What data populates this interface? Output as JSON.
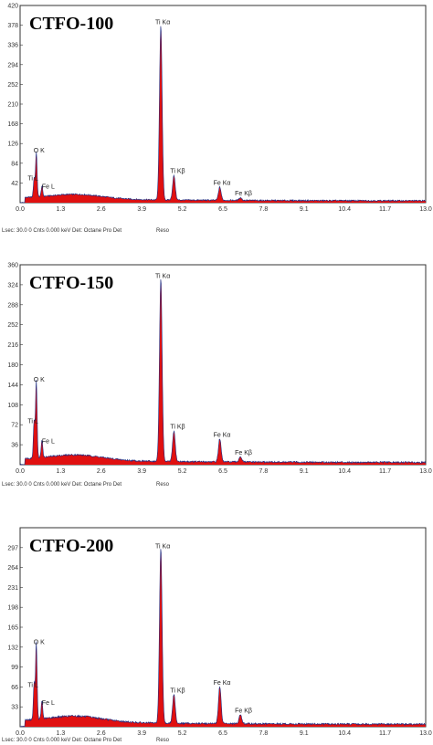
{
  "chart_data": [
    {
      "type": "line",
      "title": "CTFO-100",
      "xlim": [
        0,
        13.0
      ],
      "ylim": [
        0,
        420
      ],
      "x_ticks": [
        "0.0",
        "1.3",
        "2.6",
        "3.9",
        "5.2",
        "6.5",
        "7.8",
        "9.1",
        "10.4",
        "11.7",
        "13.0"
      ],
      "y_ticks": [
        "42",
        "84",
        "126",
        "168",
        "210",
        "252",
        "294",
        "336",
        "378",
        "420"
      ],
      "peaks": [
        {
          "label": "O K",
          "x": 0.52,
          "y": 95
        },
        {
          "label": "Ti L",
          "x": 0.45,
          "y": 40
        },
        {
          "label": "Fe L",
          "x": 0.7,
          "y": 22
        },
        {
          "label": "Ti Kα",
          "x": 4.51,
          "y": 372
        },
        {
          "label": "Ti Kβ",
          "x": 4.93,
          "y": 52
        },
        {
          "label": "Fe Kα",
          "x": 6.4,
          "y": 28
        },
        {
          "label": "Fe Kβ",
          "x": 7.06,
          "y": 6
        }
      ],
      "series": [
        {
          "values": []
        }
      ],
      "status": "Lsec: 30.0 0 Cnts 0.000 keV Det: Octane Pro Det",
      "status_reso": "Reso"
    },
    {
      "type": "line",
      "title": "CTFO-150",
      "xlim": [
        0,
        13.0
      ],
      "ylim": [
        0,
        360
      ],
      "x_ticks": [
        "0.0",
        "1.3",
        "2.6",
        "3.9",
        "5.2",
        "6.5",
        "7.8",
        "9.1",
        "10.4",
        "11.7",
        "13.0"
      ],
      "y_ticks": [
        "36",
        "72",
        "108",
        "144",
        "180",
        "216",
        "252",
        "288",
        "324",
        "360"
      ],
      "peaks": [
        {
          "label": "O K",
          "x": 0.52,
          "y": 140
        },
        {
          "label": "Ti L",
          "x": 0.45,
          "y": 68
        },
        {
          "label": "Fe L",
          "x": 0.7,
          "y": 32
        },
        {
          "label": "Ti Kα",
          "x": 4.51,
          "y": 330
        },
        {
          "label": "Ti Kβ",
          "x": 4.93,
          "y": 55
        },
        {
          "label": "Fe Kα",
          "x": 6.4,
          "y": 42
        },
        {
          "label": "Fe Kβ",
          "x": 7.06,
          "y": 10
        }
      ],
      "series": [
        {
          "values": []
        }
      ],
      "status": "Lsec: 30.0 0 Cnts 0.000 keV Det: Octane Pro Det",
      "status_reso": "Reso"
    },
    {
      "type": "line",
      "title": "CTFO-200",
      "xlim": [
        0,
        13.0
      ],
      "ylim": [
        0,
        330
      ],
      "x_ticks": [
        "0.0",
        "1.3",
        "2.6",
        "3.9",
        "5.2",
        "6.5",
        "7.8",
        "9.1",
        "10.4",
        "11.7",
        "13.0"
      ],
      "y_ticks": [
        "33",
        "66",
        "99",
        "132",
        "165",
        "198",
        "231",
        "264",
        "297"
      ],
      "peaks": [
        {
          "label": "O K",
          "x": 0.52,
          "y": 128
        },
        {
          "label": "Ti L",
          "x": 0.45,
          "y": 60
        },
        {
          "label": "Fe L",
          "x": 0.7,
          "y": 30
        },
        {
          "label": "Ti Kα",
          "x": 4.51,
          "y": 290
        },
        {
          "label": "Ti Kβ",
          "x": 4.93,
          "y": 48
        },
        {
          "label": "Fe Kα",
          "x": 6.4,
          "y": 62
        },
        {
          "label": "Fe Kβ",
          "x": 7.06,
          "y": 16
        }
      ],
      "series": [
        {
          "values": []
        }
      ],
      "status": "Lsec: 30.0 0 Cnts 0.000 keV Det: Octane Pro Det",
      "status_reso": "Reso"
    }
  ],
  "colors": {
    "fill": "#e01010",
    "line": "#1a2a80",
    "axis": "#333333"
  }
}
